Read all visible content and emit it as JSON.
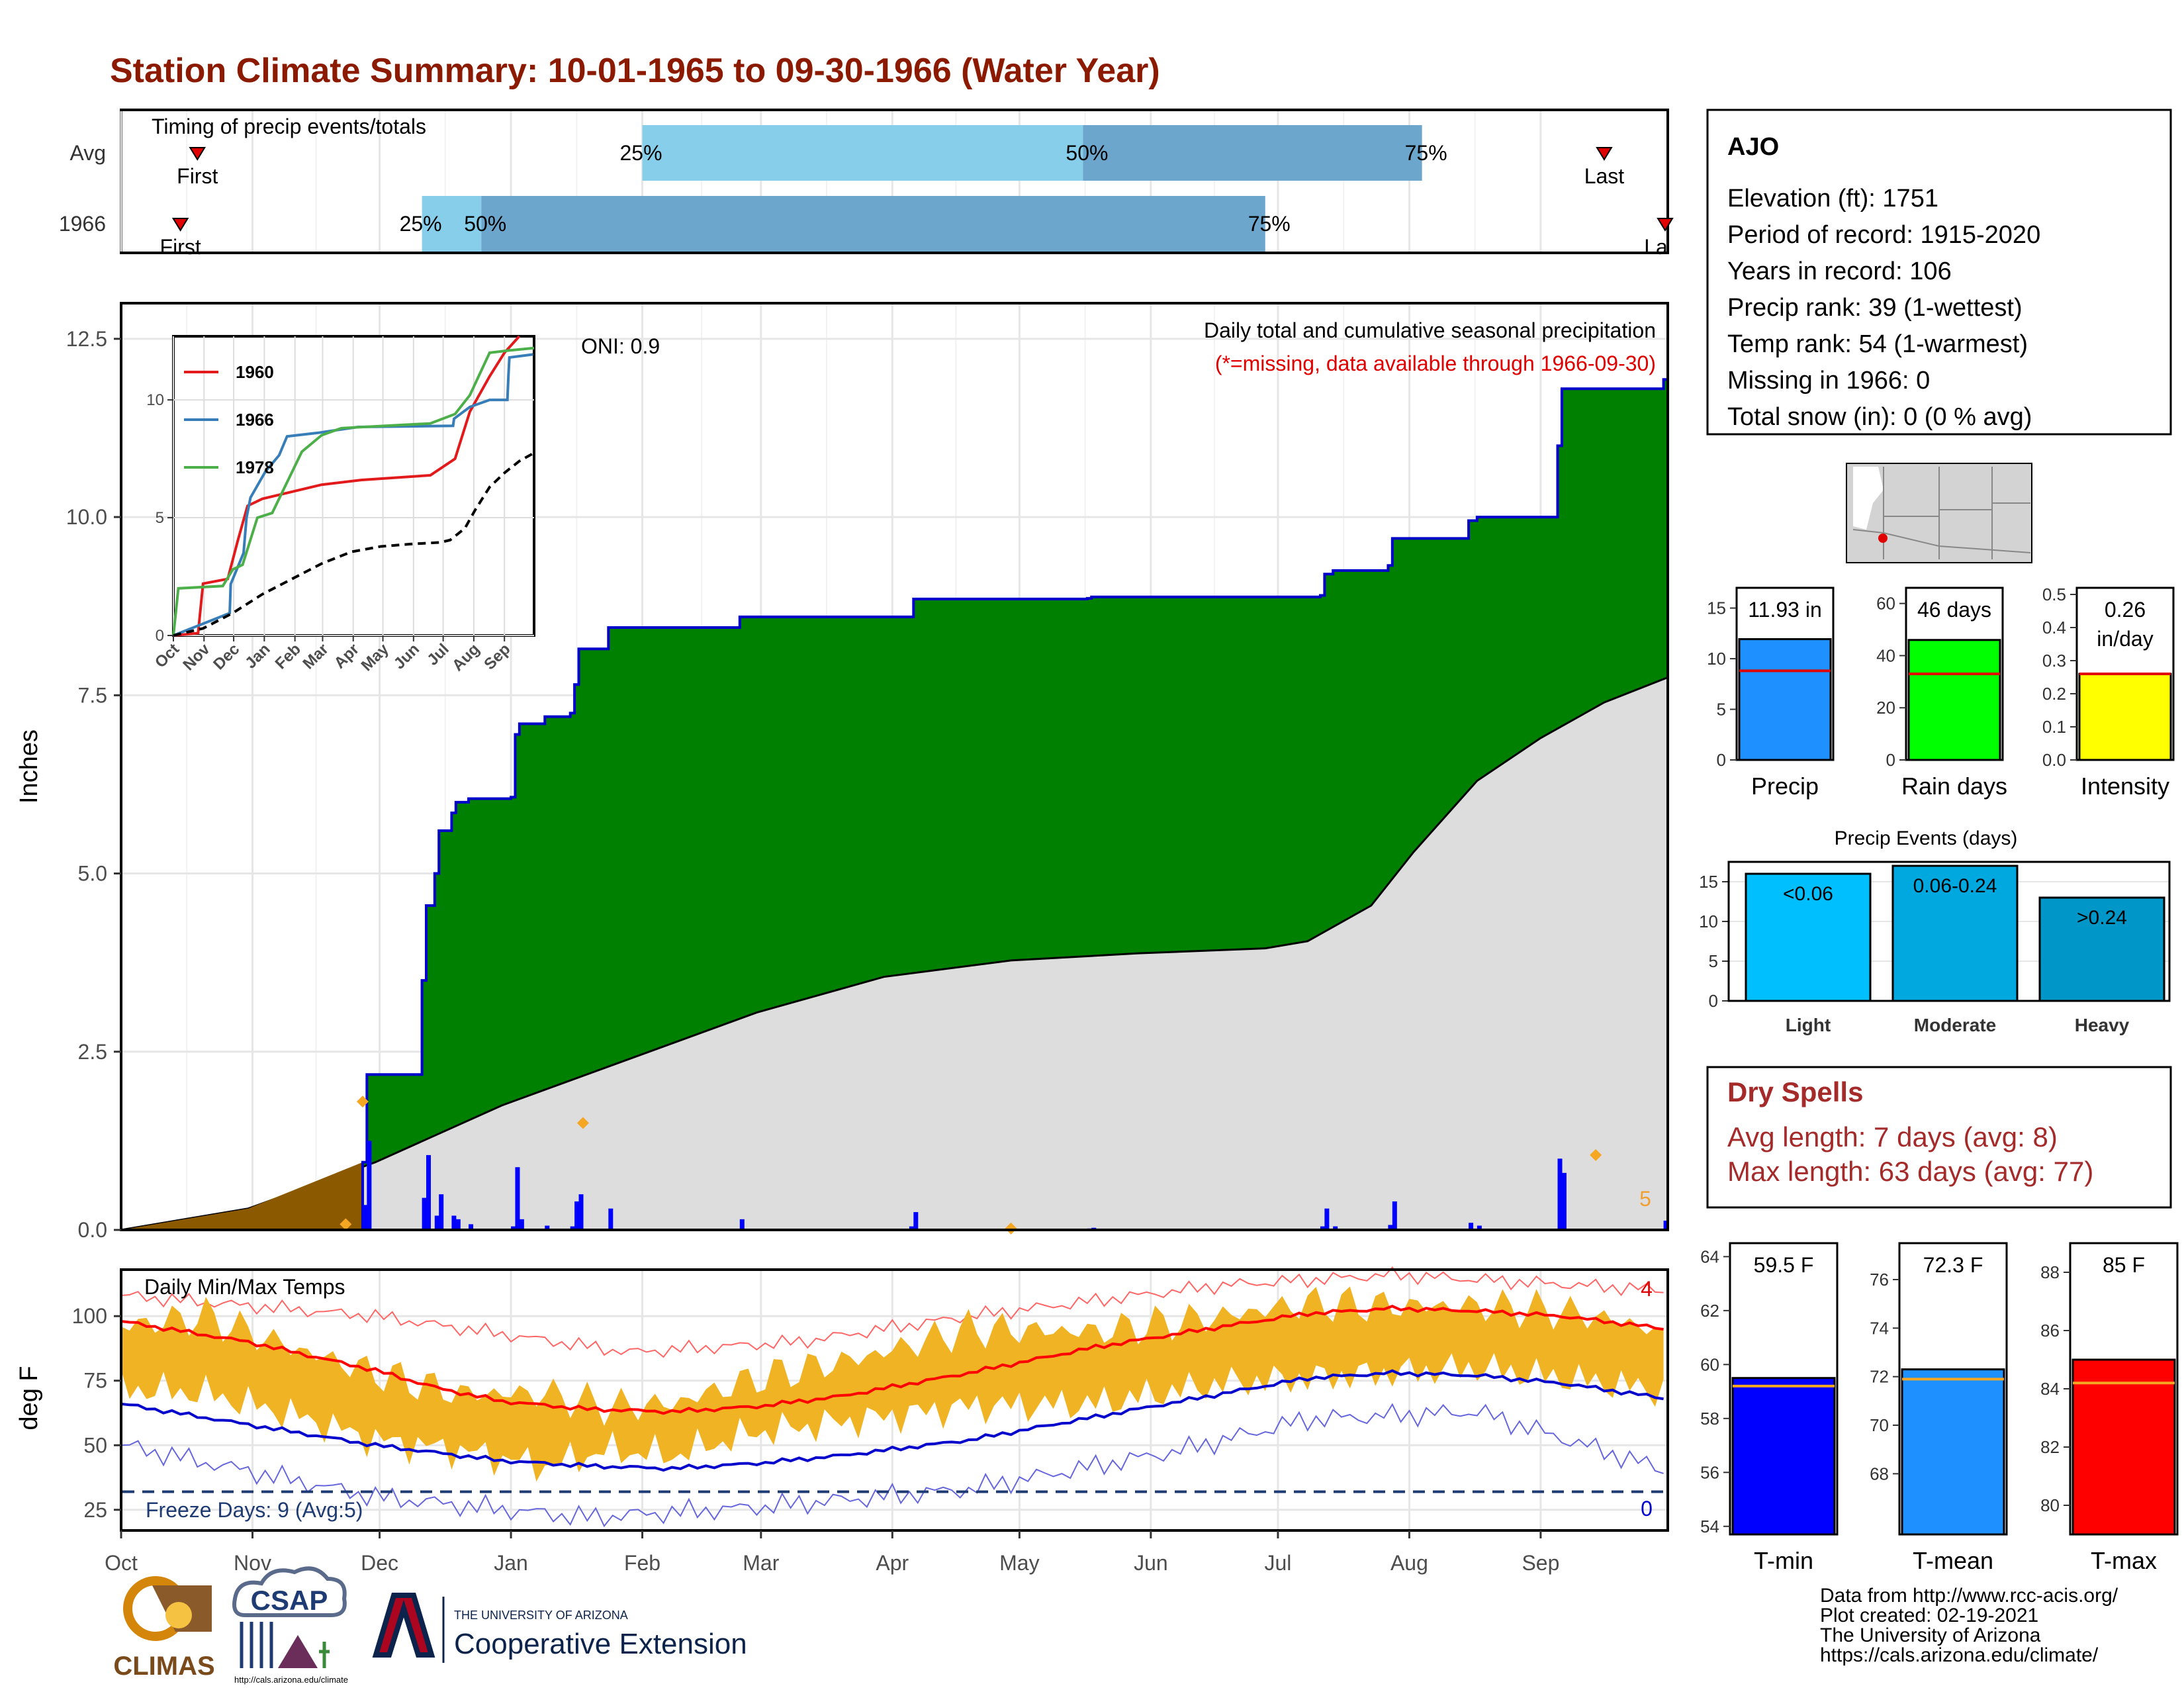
{
  "title": "Station Climate Summary: 10-01-1965 to 09-30-1966 (Water Year)",
  "colors": {
    "title": "#8B1A00",
    "precip_fill": "#008000",
    "normal_fill": "#DDDDDD",
    "early_fill": "#8B5A00",
    "daily_bar": "#0000FF",
    "temp_band": "#F0B323",
    "avg_max": "#FF0000",
    "avg_min": "#0000CC",
    "freeze_line": "#1F3B73",
    "dry_spell": "#A52A2A"
  },
  "months": [
    "Oct",
    "Nov",
    "Dec",
    "Jan",
    "Feb",
    "Mar",
    "Apr",
    "May",
    "Jun",
    "Jul",
    "Aug",
    "Sep"
  ],
  "timing": {
    "label": "Timing of precip events/totals",
    "rows": [
      {
        "name": "Avg",
        "first_label": "First",
        "last_label": "Last",
        "first_day": 18,
        "last_day": 350,
        "q25": 123,
        "q50": 227,
        "q75": 307,
        "p25_label": "25%",
        "p50_label": "50%",
        "p75_label": "75%"
      },
      {
        "name": "1966",
        "first_label": "First",
        "last_label": "La",
        "first_day": 14,
        "last_day": 365,
        "q25": 71,
        "q50": 85,
        "q75": 270,
        "p25_label": "25%",
        "p50_label": "50%",
        "p75_label": "75%"
      }
    ]
  },
  "precip_chart": {
    "type": "area",
    "ylabel": "Inches",
    "y_ticks": [
      "0.0",
      "2.5",
      "5.0",
      "7.5",
      "10.0",
      "12.5"
    ],
    "ylim": [
      0,
      13
    ],
    "oni_label": "ONI: 0.9",
    "subtitle": "Daily total and cumulative seasonal precipitation",
    "missing_note": "(*=missing, data available through 1966-09-30)",
    "count_label": "5",
    "cumulative_1966": [
      [
        0,
        0
      ],
      [
        57,
        0.95
      ],
      [
        58,
        2.18
      ],
      [
        70,
        2.18
      ],
      [
        71,
        3.5
      ],
      [
        72,
        4.55
      ],
      [
        74,
        5.0
      ],
      [
        75,
        5.6
      ],
      [
        78,
        5.85
      ],
      [
        79,
        6.0
      ],
      [
        82,
        6.05
      ],
      [
        92,
        6.07
      ],
      [
        93,
        6.95
      ],
      [
        94,
        7.1
      ],
      [
        100,
        7.2
      ],
      [
        106,
        7.25
      ],
      [
        107,
        7.65
      ],
      [
        108,
        8.15
      ],
      [
        115,
        8.45
      ],
      [
        146,
        8.6
      ],
      [
        186,
        8.6
      ],
      [
        187,
        8.85
      ],
      [
        228,
        8.86
      ],
      [
        229,
        8.88
      ],
      [
        283,
        8.9
      ],
      [
        284,
        9.2
      ],
      [
        286,
        9.25
      ],
      [
        299,
        9.32
      ],
      [
        300,
        9.7
      ],
      [
        318,
        9.95
      ],
      [
        320,
        10.0
      ],
      [
        338,
        10.0
      ],
      [
        339,
        11.0
      ],
      [
        340,
        11.8
      ],
      [
        364,
        11.93
      ]
    ],
    "normal_cumulative": [
      [
        0,
        0
      ],
      [
        30,
        0.3
      ],
      [
        60,
        0.95
      ],
      [
        90,
        1.75
      ],
      [
        120,
        2.4
      ],
      [
        150,
        3.05
      ],
      [
        180,
        3.55
      ],
      [
        210,
        3.78
      ],
      [
        240,
        3.88
      ],
      [
        270,
        3.95
      ],
      [
        280,
        4.05
      ],
      [
        295,
        4.55
      ],
      [
        305,
        5.3
      ],
      [
        320,
        6.3
      ],
      [
        335,
        6.9
      ],
      [
        350,
        7.4
      ],
      [
        365,
        7.75
      ]
    ],
    "daily_bars": [
      [
        57,
        0.35
      ],
      [
        58,
        1.25
      ],
      [
        71,
        0.45
      ],
      [
        72,
        1.05
      ],
      [
        74,
        0.2
      ],
      [
        75,
        0.5
      ],
      [
        78,
        0.2
      ],
      [
        79,
        0.15
      ],
      [
        82,
        0.08
      ],
      [
        92,
        0.05
      ],
      [
        93,
        0.88
      ],
      [
        94,
        0.15
      ],
      [
        100,
        0.06
      ],
      [
        106,
        0.05
      ],
      [
        107,
        0.4
      ],
      [
        108,
        0.5
      ],
      [
        115,
        0.3
      ],
      [
        146,
        0.15
      ],
      [
        186,
        0.05
      ],
      [
        187,
        0.25
      ],
      [
        228,
        0.02
      ],
      [
        229,
        0.03
      ],
      [
        283,
        0.05
      ],
      [
        284,
        0.3
      ],
      [
        286,
        0.05
      ],
      [
        299,
        0.07
      ],
      [
        300,
        0.4
      ],
      [
        318,
        0.1
      ],
      [
        320,
        0.06
      ],
      [
        339,
        1.0
      ],
      [
        340,
        0.8
      ],
      [
        364,
        0.13
      ]
    ],
    "orange_marks": [
      [
        57,
        1.8
      ],
      [
        53,
        0.08
      ],
      [
        109,
        1.5
      ],
      [
        210,
        0.02
      ],
      [
        348,
        1.05
      ]
    ],
    "early_days": 57
  },
  "inset_chart": {
    "type": "line",
    "y_ticks": [
      "0",
      "5",
      "10"
    ],
    "ylim": [
      0,
      12.7
    ],
    "x_labels": [
      "Oct",
      "Nov",
      "Dec",
      "Jan",
      "Feb",
      "Mar",
      "Apr",
      "May",
      "Jun",
      "Jul",
      "Aug",
      "Sep"
    ],
    "series": [
      {
        "name": "1960",
        "color": "#E31A1C",
        "points": [
          [
            0,
            0
          ],
          [
            25,
            0.1
          ],
          [
            30,
            2.2
          ],
          [
            55,
            2.4
          ],
          [
            65,
            4.0
          ],
          [
            75,
            5.5
          ],
          [
            90,
            5.8
          ],
          [
            110,
            6.0
          ],
          [
            150,
            6.4
          ],
          [
            190,
            6.6
          ],
          [
            260,
            6.8
          ],
          [
            285,
            7.5
          ],
          [
            300,
            9.5
          ],
          [
            320,
            11.0
          ],
          [
            335,
            12.0
          ],
          [
            350,
            12.7
          ]
        ]
      },
      {
        "name": "1966",
        "color": "#377EB8",
        "points": [
          [
            0,
            0
          ],
          [
            57,
            0.95
          ],
          [
            58,
            2.18
          ],
          [
            71,
            3.5
          ],
          [
            74,
            5.0
          ],
          [
            78,
            5.85
          ],
          [
            93,
            6.95
          ],
          [
            107,
            7.65
          ],
          [
            115,
            8.45
          ],
          [
            146,
            8.6
          ],
          [
            187,
            8.85
          ],
          [
            283,
            8.9
          ],
          [
            284,
            9.2
          ],
          [
            300,
            9.7
          ],
          [
            320,
            10.0
          ],
          [
            338,
            10.0
          ],
          [
            339,
            11.0
          ],
          [
            340,
            11.8
          ],
          [
            364,
            11.93
          ]
        ]
      },
      {
        "name": "1978",
        "color": "#4DAF4A",
        "points": [
          [
            0,
            0
          ],
          [
            5,
            2.0
          ],
          [
            50,
            2.1
          ],
          [
            60,
            2.8
          ],
          [
            70,
            3.0
          ],
          [
            85,
            5.0
          ],
          [
            100,
            5.2
          ],
          [
            115,
            6.5
          ],
          [
            130,
            7.8
          ],
          [
            150,
            8.5
          ],
          [
            170,
            8.8
          ],
          [
            260,
            9.0
          ],
          [
            285,
            9.4
          ],
          [
            300,
            10.2
          ],
          [
            320,
            12.0
          ],
          [
            340,
            12.1
          ],
          [
            365,
            12.2
          ]
        ]
      },
      {
        "name": "",
        "color": "#000000",
        "dash": true,
        "points": [
          [
            0,
            0
          ],
          [
            30,
            0.3
          ],
          [
            60,
            0.95
          ],
          [
            90,
            1.75
          ],
          [
            120,
            2.4
          ],
          [
            150,
            3.05
          ],
          [
            180,
            3.55
          ],
          [
            210,
            3.78
          ],
          [
            240,
            3.88
          ],
          [
            270,
            3.95
          ],
          [
            280,
            4.05
          ],
          [
            295,
            4.55
          ],
          [
            305,
            5.3
          ],
          [
            320,
            6.3
          ],
          [
            335,
            6.9
          ],
          [
            350,
            7.4
          ],
          [
            365,
            7.75
          ]
        ]
      }
    ]
  },
  "temp_chart": {
    "label": "Daily Min/Max Temps",
    "ylabel": "deg F",
    "y_ticks": [
      "25",
      "50",
      "75",
      "100"
    ],
    "ylim": [
      17,
      118
    ],
    "freeze_label": "Freeze Days: 9 (Avg:5)",
    "freeze_temp": 32,
    "hot_count": "4",
    "freeze_count": "0",
    "avg_max": [
      [
        0,
        98
      ],
      [
        30,
        90
      ],
      [
        60,
        79
      ],
      [
        75,
        72
      ],
      [
        90,
        67
      ],
      [
        110,
        64
      ],
      [
        130,
        63
      ],
      [
        150,
        65
      ],
      [
        170,
        69
      ],
      [
        200,
        78
      ],
      [
        230,
        88
      ],
      [
        260,
        96
      ],
      [
        280,
        101
      ],
      [
        300,
        103
      ],
      [
        320,
        102
      ],
      [
        340,
        100
      ],
      [
        365,
        95
      ]
    ],
    "avg_min": [
      [
        0,
        66
      ],
      [
        30,
        58
      ],
      [
        60,
        50
      ],
      [
        90,
        44
      ],
      [
        110,
        42
      ],
      [
        130,
        41
      ],
      [
        150,
        43
      ],
      [
        170,
        46
      ],
      [
        200,
        52
      ],
      [
        230,
        61
      ],
      [
        260,
        70
      ],
      [
        280,
        76
      ],
      [
        300,
        78
      ],
      [
        320,
        77
      ],
      [
        340,
        74
      ],
      [
        365,
        68
      ]
    ],
    "rec_max": [
      [
        0,
        108
      ],
      [
        60,
        100
      ],
      [
        120,
        86
      ],
      [
        160,
        90
      ],
      [
        200,
        100
      ],
      [
        260,
        112
      ],
      [
        300,
        116
      ],
      [
        365,
        110
      ]
    ],
    "rec_min": [
      [
        0,
        50
      ],
      [
        30,
        40
      ],
      [
        60,
        30
      ],
      [
        110,
        22
      ],
      [
        150,
        26
      ],
      [
        200,
        33
      ],
      [
        250,
        48
      ],
      [
        280,
        60
      ],
      [
        320,
        63
      ],
      [
        365,
        40
      ]
    ],
    "obs_max": [
      [
        0,
        96
      ],
      [
        20,
        100
      ],
      [
        40,
        88
      ],
      [
        60,
        78
      ],
      [
        80,
        70
      ],
      [
        100,
        70
      ],
      [
        115,
        65
      ],
      [
        130,
        66
      ],
      [
        150,
        76
      ],
      [
        175,
        84
      ],
      [
        200,
        95
      ],
      [
        230,
        94
      ],
      [
        260,
        100
      ],
      [
        280,
        105
      ],
      [
        300,
        104
      ],
      [
        320,
        104
      ],
      [
        340,
        102
      ],
      [
        360,
        96
      ],
      [
        365,
        90
      ]
    ],
    "obs_min": [
      [
        0,
        72
      ],
      [
        20,
        70
      ],
      [
        40,
        62
      ],
      [
        60,
        52
      ],
      [
        80,
        48
      ],
      [
        100,
        42
      ],
      [
        115,
        48
      ],
      [
        130,
        46
      ],
      [
        150,
        55
      ],
      [
        175,
        60
      ],
      [
        200,
        65
      ],
      [
        230,
        66
      ],
      [
        260,
        74
      ],
      [
        280,
        76
      ],
      [
        300,
        78
      ],
      [
        320,
        80
      ],
      [
        340,
        76
      ],
      [
        360,
        72
      ],
      [
        365,
        70
      ]
    ]
  },
  "station": {
    "name": "AJO",
    "lines": [
      "Elevation (ft): 1751",
      "Period of record: 1915-2020",
      "Years in record: 106",
      "Precip rank: 39 (1-wettest)",
      "Temp rank: 54 (1-warmest)",
      "Missing in 1966: 0",
      "Total snow (in): 0 (0 % avg)"
    ]
  },
  "mini_bars": [
    {
      "name": "Precip",
      "value": 11.93,
      "avg": 8.8,
      "value_label": "11.93 in",
      "value_label2": "",
      "ylim": [
        0,
        17
      ],
      "ticks": [
        "0",
        "5",
        "10",
        "15"
      ],
      "tick_vals": [
        0,
        5,
        10,
        15
      ],
      "color": "#1E90FF"
    },
    {
      "name": "Rain days",
      "value": 46,
      "avg": 33,
      "value_label": "46 days",
      "value_label2": "",
      "ylim": [
        0,
        66
      ],
      "ticks": [
        "0",
        "20",
        "40",
        "60"
      ],
      "tick_vals": [
        0,
        20,
        40,
        60
      ],
      "color": "#00FF00"
    },
    {
      "name": "Intensity",
      "value": 0.26,
      "avg": 0.26,
      "value_label": "0.26",
      "value_label2": "in/day",
      "ylim": [
        0,
        0.52
      ],
      "ticks": [
        "0.0",
        "0.1",
        "0.2",
        "0.3",
        "0.4",
        "0.5"
      ],
      "tick_vals": [
        0,
        0.1,
        0.2,
        0.3,
        0.4,
        0.5
      ],
      "color": "#FFFF00"
    }
  ],
  "precip_events": {
    "title": "Precip Events (days)",
    "ylim": [
      0,
      17.5
    ],
    "ticks": [
      "0",
      "5",
      "10",
      "15"
    ],
    "tick_vals": [
      0,
      5,
      10,
      15
    ],
    "categories": [
      "Light",
      "Moderate",
      "Heavy"
    ],
    "bar_labels": [
      "<0.06",
      "0.06-0.24",
      ">0.24"
    ],
    "values": [
      16,
      17,
      13
    ],
    "colors": [
      "#00BFFF",
      "#00A8E0",
      "#0096C7"
    ]
  },
  "dry_spells": {
    "title": "Dry Spells",
    "avg": "Avg length: 7 days (avg: 8)",
    "max": "Max length: 63 days (avg: 77)"
  },
  "temp_bars": [
    {
      "name": "T-min",
      "value": 59.5,
      "avg": 59.2,
      "value_label": "59.5 F",
      "ylim": [
        53.7,
        64.5
      ],
      "ticks": [
        "54",
        "56",
        "58",
        "60",
        "62",
        "64"
      ],
      "tick_vals": [
        54,
        56,
        58,
        60,
        62,
        64
      ],
      "color": "#0000FF"
    },
    {
      "name": "T-mean",
      "value": 72.3,
      "avg": 71.9,
      "value_label": "72.3 F",
      "ylim": [
        65.5,
        77.5
      ],
      "ticks": [
        "68",
        "70",
        "72",
        "74",
        "76"
      ],
      "tick_vals": [
        68,
        70,
        72,
        74,
        76
      ],
      "color": "#1E90FF"
    },
    {
      "name": "T-max",
      "value": 85,
      "avg": 84.2,
      "value_label": "85 F",
      "ylim": [
        79,
        89
      ],
      "ticks": [
        "80",
        "82",
        "84",
        "86",
        "88"
      ],
      "tick_vals": [
        80,
        82,
        84,
        86,
        88
      ],
      "color": "#FF0000"
    }
  ],
  "logos": {
    "climas": "CLIMAS",
    "csap": "CSAP",
    "csap_url": "http://cals.arizona.edu/climate",
    "ua_small": "THE UNIVERSITY OF ARIZONA",
    "ua_big": "Cooperative Extension"
  },
  "footer": [
    "Data from http://www.rcc-acis.org/",
    "Plot created: 02-19-2021",
    "The University of Arizona",
    "https://cals.arizona.edu/climate/"
  ]
}
